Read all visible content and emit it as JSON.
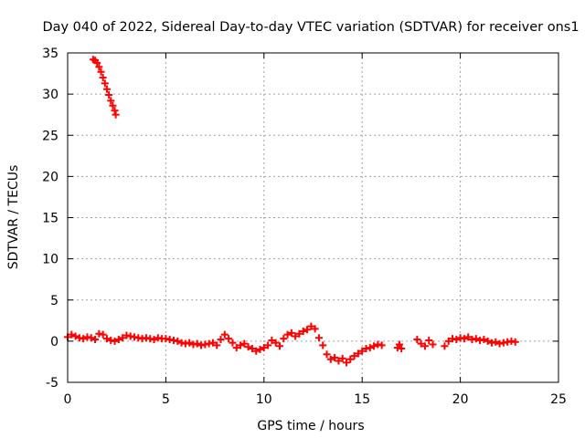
{
  "chart_data": {
    "type": "scatter",
    "title": "Day 040 of 2022, Sidereal Day-to-day VTEC variation (SDTVAR) for receiver ons1",
    "xlabel": "GPS time / hours",
    "ylabel": "SDTVAR / TECUs",
    "xlim": [
      0,
      25
    ],
    "ylim": [
      -5,
      35
    ],
    "xticks": [
      0,
      5,
      10,
      15,
      20,
      25
    ],
    "yticks": [
      -5,
      0,
      5,
      10,
      15,
      20,
      25,
      30,
      35
    ],
    "grid": true,
    "marker": "plus",
    "series_color": "#ff0000",
    "series": [
      {
        "name": "SDTVAR",
        "x": [
          1.3,
          1.4,
          1.5,
          1.6,
          1.7,
          1.8,
          1.9,
          2.0,
          2.1,
          2.2,
          2.3,
          2.4,
          2.45,
          0.0,
          0.2,
          0.4,
          0.6,
          0.8,
          1.0,
          1.2,
          1.4,
          1.6,
          1.8,
          2.0,
          2.2,
          2.4,
          2.6,
          2.8,
          3.0,
          3.2,
          3.4,
          3.6,
          3.8,
          4.0,
          4.2,
          4.4,
          4.6,
          4.8,
          5.0,
          5.2,
          5.4,
          5.6,
          5.8,
          6.0,
          6.2,
          6.4,
          6.6,
          6.8,
          7.0,
          7.2,
          7.4,
          7.6,
          7.8,
          8.0,
          8.2,
          8.4,
          8.6,
          8.8,
          9.0,
          9.2,
          9.4,
          9.6,
          9.8,
          10.0,
          10.2,
          10.4,
          10.6,
          10.8,
          11.0,
          11.2,
          11.4,
          11.6,
          11.8,
          12.0,
          12.2,
          12.4,
          12.6,
          12.8,
          13.0,
          13.2,
          13.4,
          13.6,
          13.8,
          14.0,
          14.2,
          14.4,
          14.6,
          14.8,
          15.0,
          15.2,
          15.4,
          15.6,
          15.8,
          16.0,
          16.8,
          16.9,
          17.0,
          17.8,
          18.0,
          18.2,
          18.4,
          18.6,
          19.2,
          19.4,
          19.6,
          19.8,
          20.0,
          20.2,
          20.4,
          20.6,
          20.8,
          21.0,
          21.2,
          21.4,
          21.6,
          21.8,
          22.0,
          22.2,
          22.4,
          22.6,
          22.8
        ],
        "y": [
          34.2,
          34.1,
          33.8,
          33.3,
          32.7,
          32.0,
          31.3,
          30.6,
          29.9,
          29.2,
          28.6,
          28.0,
          27.5,
          0.5,
          0.8,
          0.6,
          0.4,
          0.3,
          0.5,
          0.4,
          0.2,
          0.9,
          0.8,
          0.3,
          0.1,
          0.0,
          0.2,
          0.4,
          0.7,
          0.6,
          0.5,
          0.4,
          0.3,
          0.4,
          0.3,
          0.2,
          0.4,
          0.3,
          0.3,
          0.2,
          0.1,
          0.0,
          -0.2,
          -0.3,
          -0.2,
          -0.4,
          -0.3,
          -0.5,
          -0.4,
          -0.3,
          -0.2,
          -0.5,
          0.2,
          0.8,
          0.3,
          -0.2,
          -0.8,
          -0.5,
          -0.3,
          -0.7,
          -0.9,
          -1.2,
          -1.0,
          -0.8,
          -0.5,
          0.1,
          -0.2,
          -0.6,
          0.3,
          0.8,
          1.0,
          0.6,
          0.9,
          1.2,
          1.4,
          1.8,
          1.5,
          0.4,
          -0.5,
          -1.6,
          -2.2,
          -2.0,
          -2.4,
          -2.1,
          -2.6,
          -2.2,
          -1.8,
          -1.5,
          -1.2,
          -0.9,
          -0.8,
          -0.6,
          -0.4,
          -0.5,
          -0.8,
          -0.4,
          -0.9,
          0.2,
          -0.3,
          -0.6,
          0.1,
          -0.4,
          -0.6,
          0.0,
          0.3,
          0.2,
          0.4,
          0.3,
          0.5,
          0.2,
          0.3,
          0.1,
          0.2,
          0.0,
          -0.2,
          -0.1,
          -0.3,
          -0.2,
          -0.1,
          0.0,
          -0.1
        ]
      }
    ]
  }
}
